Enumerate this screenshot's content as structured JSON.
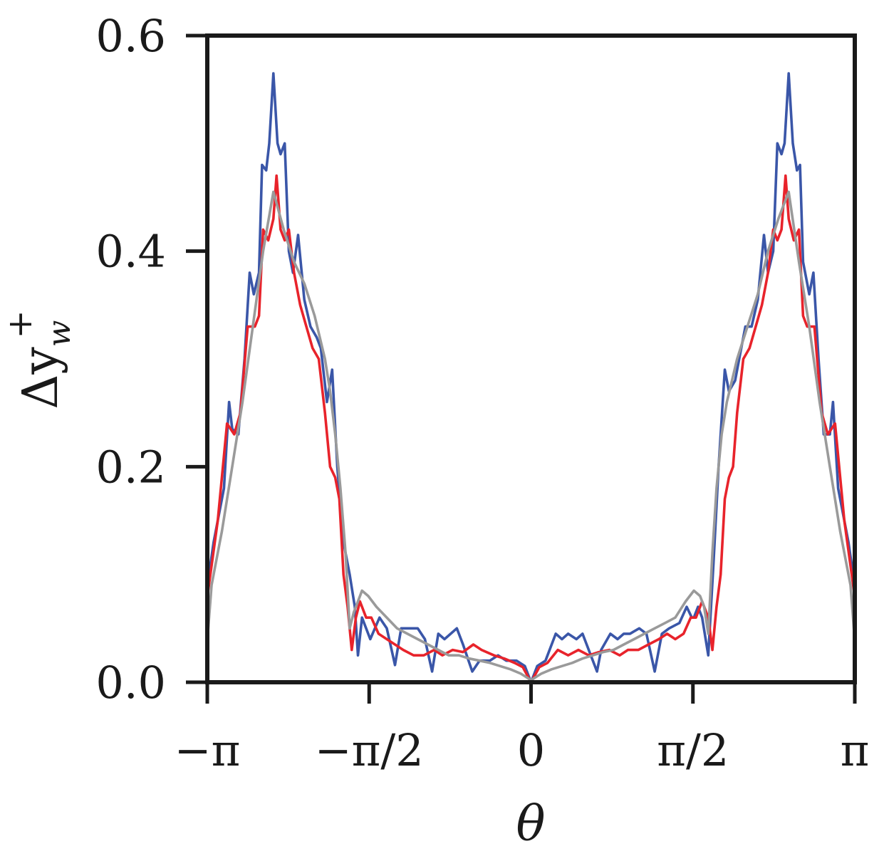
{
  "chart_data": {
    "type": "line",
    "title": "",
    "xlabel": "θ",
    "ylabel": "Δy_w^+",
    "ylabel_main": "Δy",
    "ylabel_sub": "w",
    "ylabel_sup": "+",
    "xlim": [
      -3.14159,
      3.14159
    ],
    "ylim": [
      0,
      0.6
    ],
    "x_ticks": [
      {
        "value": -3.14159,
        "label": "−π"
      },
      {
        "value": -1.5708,
        "label": "−π/2"
      },
      {
        "value": 0,
        "label": "0"
      },
      {
        "value": 1.5708,
        "label": "π/2"
      },
      {
        "value": 3.14159,
        "label": "π"
      }
    ],
    "y_ticks": [
      {
        "value": 0.0,
        "label": "0.0"
      },
      {
        "value": 0.2,
        "label": "0.2"
      },
      {
        "value": 0.4,
        "label": "0.4"
      },
      {
        "value": 0.6,
        "label": "0.6"
      }
    ],
    "grid": false,
    "series": [
      {
        "color": "#3a56a8",
        "points": [
          [
            -3.14,
            0.09
          ],
          [
            -3.08,
            0.13
          ],
          [
            -2.98,
            0.18
          ],
          [
            -2.93,
            0.26
          ],
          [
            -2.9,
            0.235
          ],
          [
            -2.84,
            0.23
          ],
          [
            -2.78,
            0.3
          ],
          [
            -2.73,
            0.38
          ],
          [
            -2.69,
            0.36
          ],
          [
            -2.64,
            0.38
          ],
          [
            -2.61,
            0.48
          ],
          [
            -2.57,
            0.475
          ],
          [
            -2.54,
            0.5
          ],
          [
            -2.5,
            0.565
          ],
          [
            -2.46,
            0.5
          ],
          [
            -2.43,
            0.49
          ],
          [
            -2.39,
            0.5
          ],
          [
            -2.35,
            0.4
          ],
          [
            -2.31,
            0.38
          ],
          [
            -2.26,
            0.415
          ],
          [
            -2.2,
            0.355
          ],
          [
            -2.14,
            0.33
          ],
          [
            -2.08,
            0.32
          ],
          [
            -2.04,
            0.31
          ],
          [
            -1.98,
            0.26
          ],
          [
            -1.93,
            0.29
          ],
          [
            -1.88,
            0.2
          ],
          [
            -1.82,
            0.13
          ],
          [
            -1.76,
            0.1
          ],
          [
            -1.71,
            0.07
          ],
          [
            -1.68,
            0.025
          ],
          [
            -1.64,
            0.06
          ],
          [
            -1.56,
            0.04
          ],
          [
            -1.47,
            0.06
          ],
          [
            -1.4,
            0.05
          ],
          [
            -1.32,
            0.016
          ],
          [
            -1.26,
            0.05
          ],
          [
            -1.17,
            0.05
          ],
          [
            -1.1,
            0.05
          ],
          [
            -1.03,
            0.04
          ],
          [
            -0.96,
            0.01
          ],
          [
            -0.9,
            0.045
          ],
          [
            -0.84,
            0.04
          ],
          [
            -0.78,
            0.045
          ],
          [
            -0.72,
            0.05
          ],
          [
            -0.66,
            0.035
          ],
          [
            -0.57,
            0.01
          ],
          [
            -0.5,
            0.02
          ],
          [
            -0.4,
            0.02
          ],
          [
            -0.32,
            0.025
          ],
          [
            -0.24,
            0.02
          ],
          [
            -0.14,
            0.02
          ],
          [
            -0.06,
            0.015
          ],
          [
            0.0,
            0.0
          ],
          [
            0.06,
            0.015
          ],
          [
            0.14,
            0.02
          ],
          [
            0.24,
            0.045
          ],
          [
            0.3,
            0.04
          ],
          [
            0.36,
            0.045
          ],
          [
            0.44,
            0.04
          ],
          [
            0.5,
            0.045
          ],
          [
            0.58,
            0.025
          ],
          [
            0.64,
            0.01
          ],
          [
            0.68,
            0.03
          ],
          [
            0.77,
            0.045
          ],
          [
            0.84,
            0.04
          ],
          [
            0.9,
            0.045
          ],
          [
            0.96,
            0.045
          ],
          [
            1.05,
            0.05
          ],
          [
            1.12,
            0.045
          ],
          [
            1.2,
            0.01
          ],
          [
            1.27,
            0.045
          ],
          [
            1.34,
            0.05
          ],
          [
            1.44,
            0.055
          ],
          [
            1.51,
            0.07
          ],
          [
            1.56,
            0.06
          ],
          [
            1.58,
            0.06
          ],
          [
            1.62,
            0.07
          ],
          [
            1.66,
            0.06
          ],
          [
            1.72,
            0.025
          ],
          [
            1.77,
            0.11
          ],
          [
            1.82,
            0.2
          ],
          [
            1.88,
            0.29
          ],
          [
            1.92,
            0.27
          ],
          [
            1.98,
            0.28
          ],
          [
            2.04,
            0.31
          ],
          [
            2.08,
            0.33
          ],
          [
            2.14,
            0.33
          ],
          [
            2.2,
            0.355
          ],
          [
            2.26,
            0.415
          ],
          [
            2.3,
            0.38
          ],
          [
            2.35,
            0.4
          ],
          [
            2.39,
            0.5
          ],
          [
            2.43,
            0.49
          ],
          [
            2.46,
            0.5
          ],
          [
            2.5,
            0.565
          ],
          [
            2.54,
            0.5
          ],
          [
            2.58,
            0.475
          ],
          [
            2.61,
            0.48
          ],
          [
            2.64,
            0.39
          ],
          [
            2.7,
            0.36
          ],
          [
            2.74,
            0.38
          ],
          [
            2.79,
            0.3
          ],
          [
            2.84,
            0.23
          ],
          [
            2.9,
            0.23
          ],
          [
            2.93,
            0.26
          ],
          [
            2.98,
            0.18
          ],
          [
            3.08,
            0.13
          ],
          [
            3.14,
            0.09
          ]
        ]
      },
      {
        "color": "#e8232b",
        "points": [
          [
            -3.14,
            0.08
          ],
          [
            -3.04,
            0.15
          ],
          [
            -2.95,
            0.24
          ],
          [
            -2.88,
            0.23
          ],
          [
            -2.82,
            0.25
          ],
          [
            -2.75,
            0.33
          ],
          [
            -2.68,
            0.33
          ],
          [
            -2.64,
            0.34
          ],
          [
            -2.6,
            0.42
          ],
          [
            -2.55,
            0.41
          ],
          [
            -2.5,
            0.43
          ],
          [
            -2.47,
            0.47
          ],
          [
            -2.43,
            0.42
          ],
          [
            -2.39,
            0.41
          ],
          [
            -2.35,
            0.42
          ],
          [
            -2.3,
            0.38
          ],
          [
            -2.24,
            0.35
          ],
          [
            -2.18,
            0.33
          ],
          [
            -2.12,
            0.31
          ],
          [
            -2.06,
            0.3
          ],
          [
            -2.0,
            0.25
          ],
          [
            -1.95,
            0.2
          ],
          [
            -1.9,
            0.19
          ],
          [
            -1.86,
            0.17
          ],
          [
            -1.82,
            0.1
          ],
          [
            -1.78,
            0.07
          ],
          [
            -1.74,
            0.03
          ],
          [
            -1.7,
            0.06
          ],
          [
            -1.66,
            0.075
          ],
          [
            -1.6,
            0.06
          ],
          [
            -1.55,
            0.06
          ],
          [
            -1.48,
            0.045
          ],
          [
            -1.4,
            0.04
          ],
          [
            -1.32,
            0.035
          ],
          [
            -1.24,
            0.03
          ],
          [
            -1.14,
            0.025
          ],
          [
            -1.04,
            0.025
          ],
          [
            -0.94,
            0.03
          ],
          [
            -0.86,
            0.025
          ],
          [
            -0.76,
            0.03
          ],
          [
            -0.66,
            0.028
          ],
          [
            -0.56,
            0.035
          ],
          [
            -0.48,
            0.03
          ],
          [
            -0.36,
            0.025
          ],
          [
            -0.26,
            0.022
          ],
          [
            -0.16,
            0.018
          ],
          [
            -0.08,
            0.014
          ],
          [
            0.0,
            0.0
          ],
          [
            0.08,
            0.014
          ],
          [
            0.16,
            0.018
          ],
          [
            0.26,
            0.03
          ],
          [
            0.36,
            0.025
          ],
          [
            0.46,
            0.03
          ],
          [
            0.56,
            0.025
          ],
          [
            0.66,
            0.028
          ],
          [
            0.76,
            0.03
          ],
          [
            0.86,
            0.025
          ],
          [
            0.94,
            0.03
          ],
          [
            1.04,
            0.03
          ],
          [
            1.14,
            0.035
          ],
          [
            1.24,
            0.04
          ],
          [
            1.32,
            0.045
          ],
          [
            1.4,
            0.04
          ],
          [
            1.48,
            0.045
          ],
          [
            1.55,
            0.06
          ],
          [
            1.6,
            0.06
          ],
          [
            1.66,
            0.075
          ],
          [
            1.72,
            0.06
          ],
          [
            1.76,
            0.03
          ],
          [
            1.8,
            0.07
          ],
          [
            1.84,
            0.1
          ],
          [
            1.88,
            0.17
          ],
          [
            1.92,
            0.19
          ],
          [
            1.96,
            0.2
          ],
          [
            2.0,
            0.25
          ],
          [
            2.06,
            0.3
          ],
          [
            2.12,
            0.31
          ],
          [
            2.18,
            0.33
          ],
          [
            2.24,
            0.35
          ],
          [
            2.3,
            0.38
          ],
          [
            2.35,
            0.42
          ],
          [
            2.39,
            0.41
          ],
          [
            2.43,
            0.42
          ],
          [
            2.47,
            0.47
          ],
          [
            2.5,
            0.43
          ],
          [
            2.55,
            0.41
          ],
          [
            2.6,
            0.42
          ],
          [
            2.64,
            0.34
          ],
          [
            2.68,
            0.33
          ],
          [
            2.75,
            0.33
          ],
          [
            2.82,
            0.25
          ],
          [
            2.88,
            0.23
          ],
          [
            2.95,
            0.24
          ],
          [
            3.04,
            0.15
          ],
          [
            3.14,
            0.08
          ]
        ]
      },
      {
        "color": "#9a9a9a",
        "points": [
          [
            -3.14,
            0.04
          ],
          [
            -3.1,
            0.09
          ],
          [
            -3.0,
            0.14
          ],
          [
            -2.9,
            0.2
          ],
          [
            -2.8,
            0.26
          ],
          [
            -2.7,
            0.33
          ],
          [
            -2.6,
            0.4
          ],
          [
            -2.5,
            0.455
          ],
          [
            -2.4,
            0.42
          ],
          [
            -2.3,
            0.39
          ],
          [
            -2.2,
            0.37
          ],
          [
            -2.1,
            0.34
          ],
          [
            -2.0,
            0.3
          ],
          [
            -1.95,
            0.27
          ],
          [
            -1.9,
            0.23
          ],
          [
            -1.85,
            0.18
          ],
          [
            -1.8,
            0.12
          ],
          [
            -1.76,
            0.05
          ],
          [
            -1.72,
            0.065
          ],
          [
            -1.68,
            0.075
          ],
          [
            -1.64,
            0.085
          ],
          [
            -1.58,
            0.08
          ],
          [
            -1.5,
            0.07
          ],
          [
            -1.4,
            0.06
          ],
          [
            -1.3,
            0.05
          ],
          [
            -1.2,
            0.045
          ],
          [
            -1.1,
            0.04
          ],
          [
            -1.0,
            0.035
          ],
          [
            -0.9,
            0.03
          ],
          [
            -0.8,
            0.025
          ],
          [
            -0.7,
            0.025
          ],
          [
            -0.6,
            0.022
          ],
          [
            -0.5,
            0.02
          ],
          [
            -0.4,
            0.018
          ],
          [
            -0.3,
            0.015
          ],
          [
            -0.2,
            0.012
          ],
          [
            -0.1,
            0.008
          ],
          [
            0.0,
            0.002
          ],
          [
            0.1,
            0.008
          ],
          [
            0.2,
            0.012
          ],
          [
            0.3,
            0.015
          ],
          [
            0.4,
            0.018
          ],
          [
            0.5,
            0.022
          ],
          [
            0.6,
            0.025
          ],
          [
            0.7,
            0.028
          ],
          [
            0.8,
            0.03
          ],
          [
            0.9,
            0.035
          ],
          [
            1.0,
            0.04
          ],
          [
            1.1,
            0.045
          ],
          [
            1.2,
            0.05
          ],
          [
            1.3,
            0.055
          ],
          [
            1.4,
            0.06
          ],
          [
            1.5,
            0.075
          ],
          [
            1.58,
            0.085
          ],
          [
            1.64,
            0.08
          ],
          [
            1.68,
            0.07
          ],
          [
            1.72,
            0.045
          ],
          [
            1.76,
            0.12
          ],
          [
            1.8,
            0.18
          ],
          [
            1.85,
            0.23
          ],
          [
            1.9,
            0.26
          ],
          [
            1.95,
            0.28
          ],
          [
            2.0,
            0.3
          ],
          [
            2.1,
            0.33
          ],
          [
            2.2,
            0.36
          ],
          [
            2.3,
            0.4
          ],
          [
            2.4,
            0.43
          ],
          [
            2.5,
            0.455
          ],
          [
            2.6,
            0.39
          ],
          [
            2.7,
            0.33
          ],
          [
            2.8,
            0.26
          ],
          [
            2.9,
            0.2
          ],
          [
            3.0,
            0.14
          ],
          [
            3.1,
            0.09
          ],
          [
            3.14,
            0.04
          ]
        ]
      }
    ]
  }
}
